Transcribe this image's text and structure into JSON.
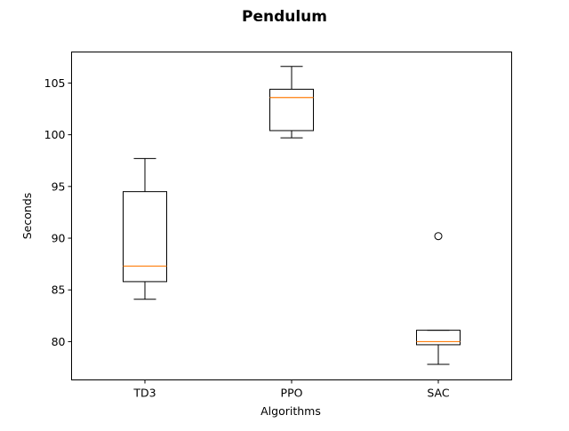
{
  "chart_data": {
    "type": "box",
    "title": "Pendulum",
    "xlabel": "Algorithms",
    "ylabel": "Seconds",
    "ylim": [
      76.3,
      108.0
    ],
    "yticks": [
      80,
      85,
      90,
      95,
      100,
      105
    ],
    "categories": [
      "TD3",
      "PPO",
      "SAC"
    ],
    "boxes": [
      {
        "category": "TD3",
        "whisker_low": 84.1,
        "q1": 85.8,
        "median": 87.3,
        "q3": 94.5,
        "whisker_high": 97.7,
        "outliers": []
      },
      {
        "category": "PPO",
        "whisker_low": 99.7,
        "q1": 100.4,
        "median": 103.6,
        "q3": 104.4,
        "whisker_high": 106.6,
        "outliers": []
      },
      {
        "category": "SAC",
        "whisker_low": 77.8,
        "q1": 79.7,
        "median": 80.0,
        "q3": 81.1,
        "whisker_high": 81.1,
        "outliers": [
          90.2
        ]
      }
    ],
    "colors": {
      "box": "#000000",
      "median": "#ff7f0e",
      "outlier": "#000000"
    },
    "grid": false,
    "legend": "none"
  }
}
